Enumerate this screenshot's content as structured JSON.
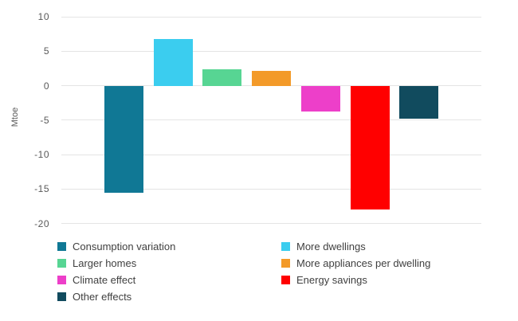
{
  "chart_data": {
    "type": "bar",
    "title": "",
    "ylabel": "Mtoe",
    "unit": "Mtoe",
    "ylim": [
      -20,
      10
    ],
    "yticks": [
      10,
      5,
      0,
      -5,
      -10,
      -15,
      -20
    ],
    "grid": true,
    "legend_position": "bottom",
    "categories": [
      "Consumption variation",
      "More dwellings",
      "Larger homes",
      "More appliances per dwelling",
      "Climate effect",
      "Energy savings",
      "Other effects"
    ],
    "values": [
      -15.5,
      6.8,
      2.4,
      2.2,
      -3.7,
      -18.0,
      -4.8
    ],
    "colors": [
      "#107895",
      "#3BCDEF",
      "#57D593",
      "#F39A29",
      "#ED3FC9",
      "#FF0000",
      "#114B5E"
    ],
    "legend": [
      {
        "label": "Consumption variation",
        "color": "#107895"
      },
      {
        "label": "More dwellings",
        "color": "#3BCDEF"
      },
      {
        "label": "Larger homes",
        "color": "#57D593"
      },
      {
        "label": "More appliances per dwelling",
        "color": "#F39A29"
      },
      {
        "label": "Climate effect",
        "color": "#ED3FC9"
      },
      {
        "label": "Energy savings",
        "color": "#FF0000"
      },
      {
        "label": "Other effects",
        "color": "#114B5E"
      }
    ],
    "colors_meta": {
      "gridline": "#e4e4e4",
      "tick_text": "#595959",
      "legend_text": "#404040",
      "background": "#ffffff"
    }
  }
}
